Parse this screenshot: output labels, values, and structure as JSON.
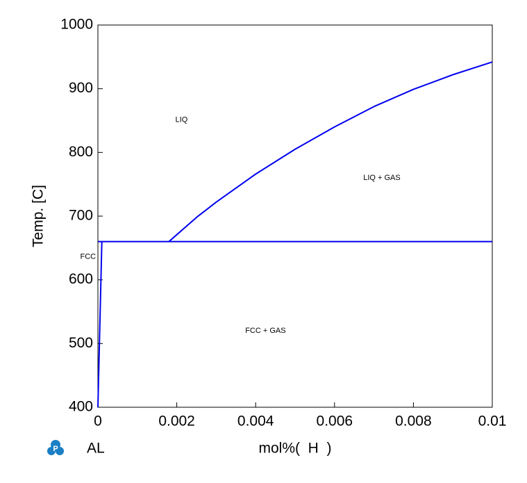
{
  "chart_data": {
    "type": "line",
    "xlabel": "mol%(  H  )",
    "ylabel": "Temp.  [C]",
    "xlim": [
      0,
      0.01
    ],
    "ylim": [
      400,
      1000
    ],
    "x_ticks": [
      "0",
      "0.002",
      "0.004",
      "0.006",
      "0.008",
      "0.01"
    ],
    "y_ticks": [
      "400",
      "500",
      "600",
      "700",
      "800",
      "900",
      "1000"
    ],
    "grid": false,
    "line_color": "#0000ee",
    "series": [
      {
        "points": [
          [
            0,
            400
          ],
          [
            0.0001,
            660
          ]
        ]
      },
      {
        "points": [
          [
            0,
            660
          ],
          [
            0.01,
            660
          ]
        ]
      },
      {
        "points": [
          [
            0.0018,
            660
          ],
          [
            0.0025,
            698
          ],
          [
            0.003,
            722
          ],
          [
            0.004,
            766
          ],
          [
            0.005,
            805
          ],
          [
            0.006,
            840
          ],
          [
            0.007,
            872
          ],
          [
            0.008,
            899
          ],
          [
            0.009,
            922
          ],
          [
            0.01,
            942
          ]
        ]
      }
    ],
    "region_labels": [
      {
        "text": "LIQ",
        "x": 0.00212,
        "y": 851
      },
      {
        "text": "LIQ + GAS",
        "x": 0.0072,
        "y": 760
      },
      {
        "text": "FCC",
        "x": -0.00025,
        "y": 636
      },
      {
        "text": "FCC + GAS",
        "x": 0.00425,
        "y": 520
      }
    ]
  },
  "footer": {
    "logo_icon": "pandat-logo-icon",
    "logo_color": "#1a7fc4",
    "system_label": "AL"
  }
}
